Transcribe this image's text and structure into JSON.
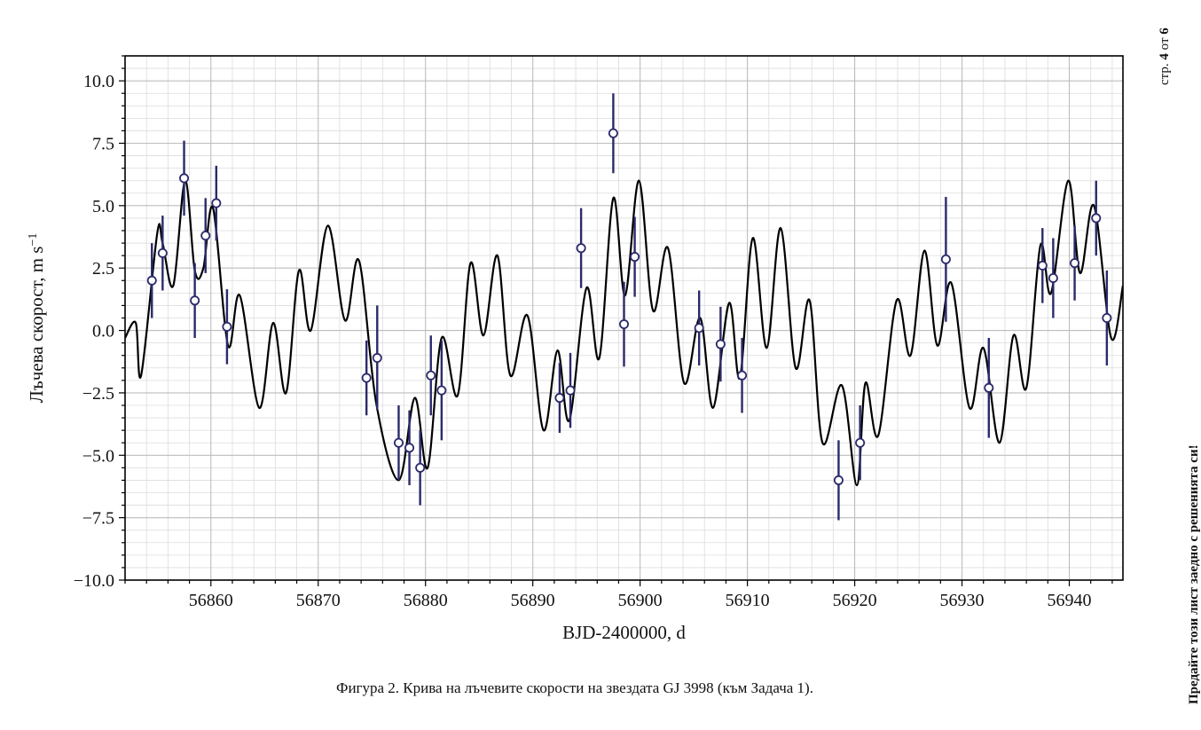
{
  "page": {
    "page_prefix": "стр.",
    "page_current": "4",
    "page_of": "от",
    "page_total": "6",
    "side_note": "Предайте този лист заедно с решенията си!",
    "caption": "Фигура 2. Крива на лъчевите скорости на звездата GJ 3998 (към Задача 1)."
  },
  "chart_data": {
    "type": "scatter",
    "xlabel": "BJD-2400000, d",
    "ylabel": "Лъчева скорост, m s",
    "ylabel_exponent": "−1",
    "xlim": [
      56852,
      56945
    ],
    "ylim": [
      -10,
      11
    ],
    "xticks": [
      56860,
      56870,
      56880,
      56890,
      56900,
      56910,
      56920,
      56930,
      56940
    ],
    "xtick_labels": [
      "56860",
      "56870",
      "56880",
      "56890",
      "56900",
      "56910",
      "56920",
      "56930",
      "56940"
    ],
    "yticks": [
      -10,
      -7.5,
      -5,
      -2.5,
      0,
      2.5,
      5,
      7.5,
      10
    ],
    "ytick_labels": [
      "−10.0",
      "−7.5",
      "−5.0",
      "−2.5",
      "0.0",
      "2.5",
      "5.0",
      "7.5",
      "10.0"
    ],
    "grid": true,
    "colors": {
      "points": "#2b2a6b",
      "model": "#000000",
      "grid": "#d0d0d0"
    },
    "points": {
      "x": [
        56854.5,
        56855.5,
        56857.5,
        56858.5,
        56859.5,
        56860.5,
        56861.5,
        56874.5,
        56875.5,
        56877.5,
        56878.5,
        56879.5,
        56880.5,
        56881.5,
        56892.5,
        56893.5,
        56894.5,
        56897.5,
        56898.5,
        56899.5,
        56905.5,
        56907.5,
        56909.5,
        56918.5,
        56920.5,
        56928.5,
        56932.5,
        56937.5,
        56938.5,
        56940.5,
        56942.5,
        56943.5
      ],
      "y": [
        2.0,
        3.1,
        6.1,
        1.2,
        3.8,
        5.1,
        0.15,
        -1.9,
        -1.1,
        -4.5,
        -4.7,
        -5.5,
        -1.8,
        -2.4,
        -2.7,
        -2.4,
        3.3,
        7.9,
        0.25,
        2.95,
        0.1,
        -0.55,
        -1.8,
        -6.0,
        -4.5,
        2.85,
        -2.3,
        2.6,
        2.1,
        2.7,
        4.5,
        0.5
      ],
      "yerr": [
        1.5,
        1.5,
        1.5,
        1.5,
        1.5,
        1.5,
        1.5,
        1.5,
        2.1,
        1.5,
        1.5,
        1.5,
        1.6,
        2.0,
        1.4,
        1.5,
        1.6,
        1.6,
        1.7,
        1.6,
        1.5,
        1.5,
        1.5,
        1.6,
        1.5,
        2.5,
        2.0,
        1.5,
        1.6,
        1.5,
        1.5,
        1.9
      ]
    },
    "model": {
      "x": [
        56852.0,
        56853.0,
        56853.5,
        56855.0,
        56855.5,
        56856.5,
        56857.6,
        56858.5,
        56859.3,
        56860.2,
        56861.6,
        56862.7,
        56864.5,
        56865.8,
        56867.0,
        56868.2,
        56869.3,
        56870.9,
        56872.5,
        56873.8,
        56875.4,
        56877.5,
        56879.0,
        56880.2,
        56881.5,
        56883.0,
        56884.2,
        56885.4,
        56886.7,
        56887.9,
        56889.5,
        56891.0,
        56892.3,
        56893.4,
        56895.0,
        56896.2,
        56897.5,
        56898.6,
        56899.9,
        56901.2,
        56902.6,
        56904.1,
        56905.6,
        56906.8,
        56908.3,
        56909.3,
        56910.5,
        56911.8,
        56913.1,
        56914.5,
        56915.8,
        56917.0,
        56918.8,
        56920.2,
        56921.0,
        56922.2,
        56923.9,
        56925.2,
        56926.5,
        56927.7,
        56929.0,
        56930.7,
        56932.0,
        56933.5,
        56934.8,
        56936.0,
        56937.3,
        56938.3,
        56939.9,
        56941.0,
        56942.3,
        56943.9,
        56945.0
      ],
      "y": [
        -0.3,
        0.3,
        -1.8,
        3.9,
        3.5,
        1.8,
        6.0,
        2.4,
        2.5,
        4.9,
        -0.6,
        1.4,
        -3.1,
        0.3,
        -2.5,
        2.4,
        0.0,
        4.2,
        0.4,
        2.8,
        -2.9,
        -6.0,
        -2.7,
        -5.5,
        -0.3,
        -2.6,
        2.7,
        -0.2,
        3.0,
        -1.8,
        0.6,
        -4.0,
        -0.8,
        -3.6,
        1.7,
        -1.1,
        5.3,
        1.4,
        6.0,
        0.8,
        3.3,
        -2.1,
        0.5,
        -3.1,
        1.1,
        -1.9,
        3.7,
        -0.7,
        4.1,
        -1.5,
        1.2,
        -4.5,
        -2.2,
        -6.2,
        -2.1,
        -4.2,
        1.2,
        -1.0,
        3.2,
        -0.6,
        1.9,
        -3.1,
        -0.7,
        -4.5,
        -0.2,
        -2.3,
        3.4,
        1.5,
        6.0,
        2.3,
        5.0,
        -0.3,
        1.8
      ]
    }
  }
}
